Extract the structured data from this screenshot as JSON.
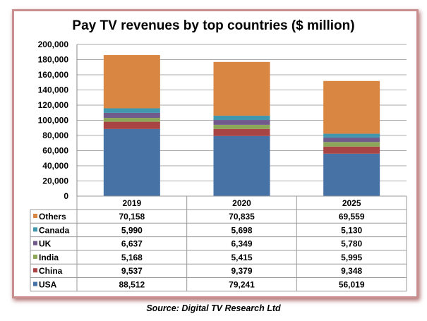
{
  "chart_data": {
    "type": "bar",
    "stacked": true,
    "title": "Pay TV revenues by top countries ($ million)",
    "categories": [
      "2019",
      "2020",
      "2025"
    ],
    "ylim": [
      0,
      200000
    ],
    "yticks": [
      "0",
      "20,000",
      "40,000",
      "60,000",
      "80,000",
      "100,000",
      "120,000",
      "140,000",
      "160,000",
      "180,000",
      "200,000"
    ],
    "grid": true,
    "legend": "data-table",
    "series": [
      {
        "name": "USA",
        "color": "#4672a6",
        "values": [
          88512,
          79241,
          56019
        ],
        "labels": [
          "88,512",
          "79,241",
          "56,019"
        ]
      },
      {
        "name": "China",
        "color": "#a84444",
        "values": [
          9537,
          9379,
          9348
        ],
        "labels": [
          "9,537",
          "9,379",
          "9,348"
        ]
      },
      {
        "name": "India",
        "color": "#8ba757",
        "values": [
          5168,
          5415,
          5995
        ],
        "labels": [
          "5,168",
          "5,415",
          "5,995"
        ]
      },
      {
        "name": "UK",
        "color": "#715a8c",
        "values": [
          6637,
          6349,
          5780
        ],
        "labels": [
          "6,637",
          "6,349",
          "5,780"
        ]
      },
      {
        "name": "Canada",
        "color": "#4197ae",
        "values": [
          5990,
          5698,
          5130
        ],
        "labels": [
          "5,990",
          "5,698",
          "5,130"
        ]
      },
      {
        "name": "Others",
        "color": "#d98643",
        "values": [
          70158,
          70835,
          69559
        ],
        "labels": [
          "70,158",
          "70,835",
          "69,559"
        ]
      }
    ]
  },
  "source": "Source: Digital TV Research Ltd"
}
